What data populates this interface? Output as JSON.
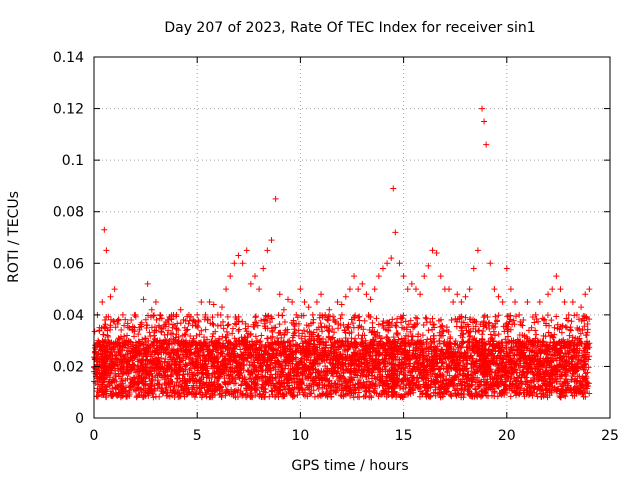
{
  "chart_data": {
    "type": "scatter",
    "title": "Day 207 of 2023, Rate Of TEC Index for receiver sin1",
    "xlabel": "GPS time / hours",
    "ylabel": "ROTI / TECUs",
    "xlim": [
      0,
      25
    ],
    "ylim": [
      0,
      0.14
    ],
    "x_ticks": [
      "0",
      "5",
      "10",
      "15",
      "20",
      "25"
    ],
    "y_ticks": [
      "0",
      "0.02",
      "0.04",
      "0.06",
      "0.08",
      "0.1",
      "0.12",
      "0.14"
    ],
    "grid": true,
    "marker": "+",
    "color": "#ff0000",
    "series": [
      {
        "x": [
          0.0,
          0.2,
          0.4,
          0.5,
          0.6,
          0.8,
          1.0,
          1.2,
          1.4,
          1.6,
          1.8,
          2.0,
          2.2,
          2.4,
          2.6,
          2.8,
          3.0,
          3.2,
          3.4,
          3.6,
          3.8,
          4.0,
          4.2,
          4.4,
          4.6,
          4.8,
          5.0,
          5.2,
          5.4,
          5.6,
          5.8,
          6.0,
          6.2,
          6.4,
          6.6,
          6.8,
          7.0,
          7.2,
          7.4,
          7.6,
          7.8,
          8.0,
          8.2,
          8.4,
          8.6,
          8.8,
          9.0,
          9.2,
          9.4,
          9.6,
          9.8,
          10.0,
          10.2,
          10.4,
          10.6,
          10.8,
          11.0,
          11.2,
          11.4,
          11.6,
          11.8,
          12.0,
          12.2,
          12.4,
          12.6,
          12.8,
          13.0,
          13.2,
          13.4,
          13.6,
          13.8,
          14.0,
          14.2,
          14.4,
          14.5,
          14.6,
          14.8,
          15.0,
          15.2,
          15.4,
          15.6,
          15.8,
          16.0,
          16.2,
          16.4,
          16.6,
          16.8,
          17.0,
          17.2,
          17.4,
          17.6,
          17.8,
          18.0,
          18.2,
          18.4,
          18.6,
          18.8,
          18.9,
          19.0,
          19.2,
          19.4,
          19.6,
          19.8,
          20.0,
          20.2,
          20.4,
          20.6,
          20.8,
          21.0,
          21.2,
          21.4,
          21.6,
          21.8,
          22.0,
          22.2,
          22.4,
          22.6,
          22.8,
          23.0,
          23.2,
          23.4,
          23.6,
          23.8,
          24.0
        ],
        "y": [
          0.018,
          0.03,
          0.045,
          0.073,
          0.065,
          0.047,
          0.05,
          0.038,
          0.04,
          0.032,
          0.038,
          0.04,
          0.035,
          0.046,
          0.052,
          0.042,
          0.045,
          0.04,
          0.036,
          0.038,
          0.035,
          0.04,
          0.042,
          0.035,
          0.04,
          0.038,
          0.04,
          0.045,
          0.04,
          0.045,
          0.044,
          0.04,
          0.043,
          0.05,
          0.055,
          0.06,
          0.063,
          0.06,
          0.065,
          0.052,
          0.055,
          0.05,
          0.058,
          0.065,
          0.069,
          0.085,
          0.048,
          0.042,
          0.046,
          0.045,
          0.04,
          0.05,
          0.045,
          0.043,
          0.04,
          0.045,
          0.048,
          0.04,
          0.042,
          0.038,
          0.045,
          0.044,
          0.047,
          0.05,
          0.055,
          0.05,
          0.052,
          0.048,
          0.046,
          0.05,
          0.055,
          0.058,
          0.06,
          0.062,
          0.089,
          0.072,
          0.06,
          0.055,
          0.05,
          0.052,
          0.05,
          0.048,
          0.055,
          0.059,
          0.065,
          0.064,
          0.055,
          0.05,
          0.05,
          0.045,
          0.048,
          0.045,
          0.047,
          0.05,
          0.058,
          0.065,
          0.12,
          0.115,
          0.106,
          0.06,
          0.05,
          0.047,
          0.045,
          0.058,
          0.05,
          0.045,
          0.04,
          0.038,
          0.045,
          0.035,
          0.04,
          0.045,
          0.038,
          0.048,
          0.05,
          0.055,
          0.05,
          0.045,
          0.04,
          0.045,
          0.04,
          0.043,
          0.048,
          0.05
        ]
      }
    ],
    "bulk_note_baseline": [
      0.008,
      0.018
    ]
  }
}
